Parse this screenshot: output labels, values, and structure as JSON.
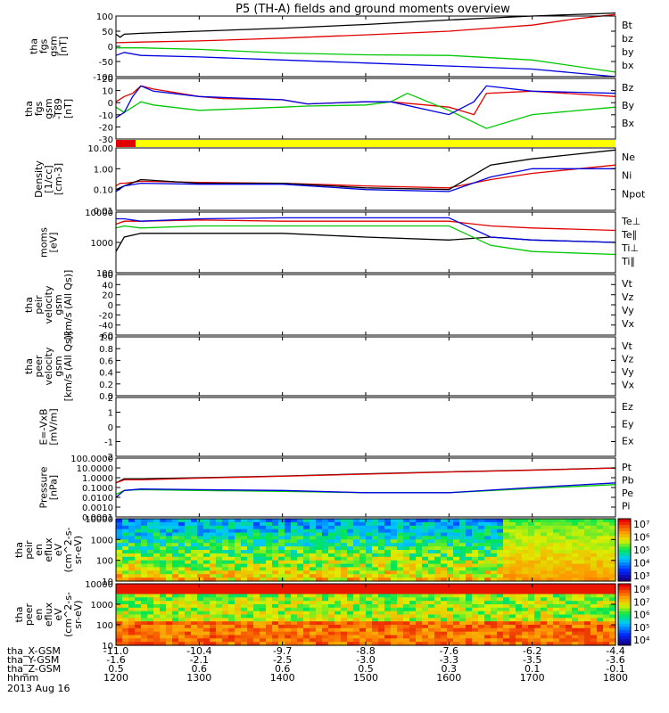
{
  "title": "P5 (TH-A) fields and ground moments overview",
  "date": "2013 Aug 16",
  "colors": {
    "black": "#000000",
    "red": "#e00000",
    "green": "#00c800",
    "blue": "#0000e0",
    "yellow": "#ffff00"
  },
  "chart_data": [
    {
      "type": "line",
      "ylabel": [
        "tha",
        "fgs",
        "gsm",
        "[nT]"
      ],
      "ylim": [
        -100,
        100
      ],
      "ytick_labels": [
        "100",
        "50",
        "0",
        "-50",
        "-100"
      ],
      "legend": [
        "Bt",
        "bz",
        "by",
        "bx"
      ],
      "series": [
        {
          "name": "Bt",
          "color": "#000000",
          "x": [
            1200,
            1205,
            1210,
            1230,
            1300,
            1400,
            1500,
            1600,
            1700,
            1800
          ],
          "values": [
            40,
            30,
            40,
            43,
            50,
            60,
            72,
            87,
            100,
            110
          ]
        },
        {
          "name": "bz",
          "color": "#e00000",
          "x": [
            1200,
            1230,
            1300,
            1400,
            1500,
            1600,
            1700,
            1750,
            1800
          ],
          "values": [
            12,
            14,
            18,
            27,
            38,
            50,
            70,
            90,
            105
          ]
        },
        {
          "name": "by",
          "color": "#00c800",
          "x": [
            1200,
            1230,
            1300,
            1400,
            1500,
            1600,
            1700,
            1800
          ],
          "values": [
            -5,
            -5,
            -10,
            -22,
            -28,
            -30,
            -45,
            -85
          ]
        },
        {
          "name": "bx",
          "color": "#0000e0",
          "x": [
            1200,
            1210,
            1230,
            1300,
            1400,
            1500,
            1600,
            1700,
            1800
          ],
          "values": [
            -30,
            -20,
            -30,
            -35,
            -45,
            -55,
            -65,
            -75,
            -100
          ]
        }
      ]
    },
    {
      "type": "line",
      "ylabel": [
        "tha",
        "fgs",
        "gsm",
        "-T89",
        "[nT]"
      ],
      "ylim": [
        -35,
        22
      ],
      "ytick_labels": [
        "20",
        "10",
        "0",
        "-10",
        "-20",
        "-30"
      ],
      "legend": [
        "Bz",
        "By",
        "Bx"
      ],
      "series": [
        {
          "name": "Bz",
          "color": "#e00000",
          "x": [
            1200,
            1210,
            1220,
            1230,
            1245,
            1300,
            1330,
            1400,
            1430,
            1500,
            1530,
            1600,
            1630,
            1645,
            1700,
            1800
          ],
          "values": [
            0,
            5,
            8,
            15,
            12,
            5,
            3,
            2,
            -2,
            0,
            0,
            -5,
            -12,
            8,
            10,
            5
          ]
        },
        {
          "name": "By",
          "color": "#00c800",
          "x": [
            1200,
            1210,
            1220,
            1230,
            1245,
            1300,
            1400,
            1430,
            1500,
            1530,
            1550,
            1600,
            1645,
            1700,
            1800
          ],
          "values": [
            -5,
            -10,
            -5,
            0,
            -3,
            -8,
            -5,
            -4,
            -3,
            0,
            8,
            -8,
            -25,
            -12,
            -5
          ]
        },
        {
          "name": "Bx",
          "color": "#0000e0",
          "x": [
            1200,
            1210,
            1220,
            1230,
            1245,
            1300,
            1400,
            1430,
            1500,
            1530,
            1600,
            1630,
            1645,
            1700,
            1800
          ],
          "values": [
            -15,
            -10,
            5,
            15,
            10,
            5,
            2,
            -2,
            0,
            0,
            -12,
            0,
            15,
            10,
            8
          ]
        }
      ]
    },
    {
      "type": "line",
      "ylabel": [
        "Density",
        "[1/cc]",
        "[cm-3]"
      ],
      "yscale": "log",
      "ylim": [
        0.01,
        10
      ],
      "ytick_labels": [
        "10.00",
        "1.00",
        "0.10",
        "0.01"
      ],
      "legend": [
        "Ne",
        "Ni",
        "Npot"
      ],
      "series": [
        {
          "name": "Ne",
          "color": "#e00000",
          "x": [
            1200,
            1205,
            1210,
            1230,
            1300,
            1400,
            1500,
            1600,
            1650,
            1700,
            1800
          ],
          "values": [
            0.15,
            0.2,
            0.2,
            0.25,
            0.22,
            0.2,
            0.15,
            0.12,
            0.3,
            0.6,
            1.5
          ]
        },
        {
          "name": "Ni",
          "color": "#000000",
          "x": [
            1200,
            1210,
            1230,
            1300,
            1400,
            1500,
            1600,
            1650,
            1700,
            1800
          ],
          "values": [
            0.1,
            0.15,
            0.3,
            0.2,
            0.2,
            0.12,
            0.1,
            1.5,
            3,
            8
          ]
        },
        {
          "name": "Npot",
          "color": "#0000e0",
          "x": [
            1200,
            1210,
            1230,
            1300,
            1400,
            1500,
            1600,
            1650,
            1700,
            1800
          ],
          "values": [
            0.08,
            0.15,
            0.2,
            0.18,
            0.18,
            0.1,
            0.08,
            0.4,
            1.0,
            1.0
          ]
        }
      ]
    },
    {
      "type": "line",
      "ylabel": [
        "moms",
        "[eV]"
      ],
      "yscale": "log",
      "ylim": [
        100,
        10000
      ],
      "ytick_labels": [
        "10000",
        "1000",
        "100"
      ],
      "legend": [
        "Te⊥",
        "Te∥",
        "Ti⊥",
        "Ti∥"
      ],
      "series": [
        {
          "name": "Te⊥",
          "color": "#e00000",
          "x": [
            1200,
            1210,
            1230,
            1300,
            1400,
            1500,
            1600,
            1650,
            1700,
            1800
          ],
          "values": [
            4000,
            5000,
            5000,
            5500,
            5000,
            5000,
            5000,
            3500,
            3000,
            2500
          ]
        },
        {
          "name": "Te∥",
          "color": "#000000",
          "x": [
            1200,
            1210,
            1230,
            1300,
            1400,
            1500,
            1600,
            1650,
            1700,
            1800
          ],
          "values": [
            500,
            1500,
            2000,
            2000,
            2000,
            1500,
            1200,
            1500,
            1200,
            1000
          ]
        },
        {
          "name": "Ti⊥",
          "color": "#0000e0",
          "x": [
            1200,
            1210,
            1230,
            1300,
            1400,
            1500,
            1600,
            1650,
            1700,
            1800
          ],
          "values": [
            6000,
            6000,
            5000,
            6000,
            6500,
            6500,
            6500,
            1500,
            1200,
            1000
          ]
        },
        {
          "name": "Ti∥",
          "color": "#00c800",
          "x": [
            1200,
            1210,
            1230,
            1300,
            1400,
            1500,
            1600,
            1650,
            1700,
            1800
          ],
          "values": [
            3000,
            3500,
            3000,
            3500,
            3500,
            3500,
            3500,
            800,
            500,
            400
          ]
        }
      ]
    },
    {
      "type": "line",
      "ylabel": [
        "tha",
        "peir",
        "velocity",
        "gsm",
        "[km/s (All Qs)]"
      ],
      "ylim": [
        -60,
        60
      ],
      "ytick_labels": [
        "60",
        "40",
        "20",
        "0",
        "-20",
        "-40",
        "-60"
      ],
      "legend": [
        "Vt",
        "Vz",
        "Vy",
        "Vx"
      ],
      "series": []
    },
    {
      "type": "line",
      "ylabel": [
        "tha",
        "peer",
        "velocity",
        "gsm",
        "[km/s (All Qs)]"
      ],
      "ylim": [
        0,
        1
      ],
      "ytick_labels": [
        "1.0",
        "0.8",
        "0.6",
        "0.4",
        "0.2",
        "0.0"
      ],
      "legend": [
        "Vt",
        "Vz",
        "Vy",
        "Vx"
      ],
      "series": []
    },
    {
      "type": "line",
      "ylabel": [
        "E=-VxB",
        "[mV/m]"
      ],
      "ylim": [
        -2,
        2
      ],
      "ytick_labels": [
        "2",
        "1",
        "0",
        "-1",
        "-2"
      ],
      "legend": [
        "Ez",
        "Ey",
        "Ex"
      ],
      "series": []
    },
    {
      "type": "line",
      "ylabel": [
        "Pressure",
        "[nPa]"
      ],
      "yscale": "log",
      "ylim": [
        0.0001,
        100
      ],
      "ytick_labels": [
        "100.0000",
        "10.0000",
        "1.0000",
        "0.1000",
        "0.0100",
        "0.0010",
        "0.0001"
      ],
      "legend": [
        "Pt",
        "Pb",
        "Pe",
        "Pi"
      ],
      "series": [
        {
          "name": "Pt",
          "color": "#000000",
          "x": [
            1200,
            1210,
            1230,
            1300,
            1400,
            1500,
            1600,
            1700,
            1800
          ],
          "values": [
            0.3,
            0.8,
            0.8,
            1.0,
            1.5,
            2.5,
            4,
            6,
            10
          ]
        },
        {
          "name": "Pb",
          "color": "#e00000",
          "x": [
            1200,
            1210,
            1230,
            1300,
            1400,
            1500,
            1600,
            1700,
            1800
          ],
          "values": [
            0.3,
            0.6,
            0.6,
            0.9,
            1.4,
            2.3,
            3.8,
            5.8,
            9.5
          ]
        },
        {
          "name": "Pe",
          "color": "#00c800",
          "x": [
            1200,
            1210,
            1230,
            1300,
            1400,
            1500,
            1600,
            1700,
            1800
          ],
          "values": [
            0.02,
            0.05,
            0.06,
            0.05,
            0.04,
            0.03,
            0.03,
            0.08,
            0.2
          ]
        },
        {
          "name": "Pi",
          "color": "#0000e0",
          "x": [
            1200,
            1210,
            1230,
            1300,
            1400,
            1500,
            1600,
            1700,
            1800
          ],
          "values": [
            0.01,
            0.05,
            0.07,
            0.06,
            0.05,
            0.03,
            0.03,
            0.1,
            0.3
          ]
        }
      ]
    },
    {
      "type": "heatmap",
      "ylabel": [
        "tha",
        "peir",
        "en",
        "eflux",
        "eV",
        "(cm^2-s-",
        "sr-eV)"
      ],
      "yscale": "log",
      "ylim": [
        10,
        20000
      ],
      "ytick_labels": [
        "10000",
        "1000",
        "100",
        "10"
      ],
      "colorbar_labels": [
        "10⁷",
        "10⁶",
        "10⁵",
        "10⁴",
        "10³"
      ]
    },
    {
      "type": "heatmap",
      "ylabel": [
        "tha",
        "peer",
        "en",
        "eflux",
        "eV",
        "(cm^2-s-",
        "sr-eV)"
      ],
      "yscale": "log",
      "ylim": [
        10,
        20000
      ],
      "ytick_labels": [
        "10000",
        "1000",
        "100",
        "10"
      ],
      "colorbar_labels": [
        "10⁸",
        "10⁷",
        "10⁶",
        "10⁵",
        "10⁴"
      ]
    }
  ],
  "xaxis": {
    "rows": [
      {
        "label": "tha_X-GSM",
        "values": [
          "-11.0",
          "-10.4",
          "-9.7",
          "-8.8",
          "-7.6",
          "-6.2",
          "-4.4"
        ]
      },
      {
        "label": "tha_Y-GSM",
        "values": [
          "-1.6",
          "-2.1",
          "-2.5",
          "-3.0",
          "-3.3",
          "-3.5",
          "-3.6"
        ]
      },
      {
        "label": "tha_Z-GSM",
        "values": [
          "0.5",
          "0.6",
          "0.6",
          "0.5",
          "0.3",
          "0.1",
          "-0.1"
        ]
      },
      {
        "label": "hhmm",
        "values": [
          "1200",
          "1300",
          "1400",
          "1500",
          "1600",
          "1700",
          "1800"
        ]
      }
    ],
    "range": [
      1200,
      1800
    ]
  }
}
